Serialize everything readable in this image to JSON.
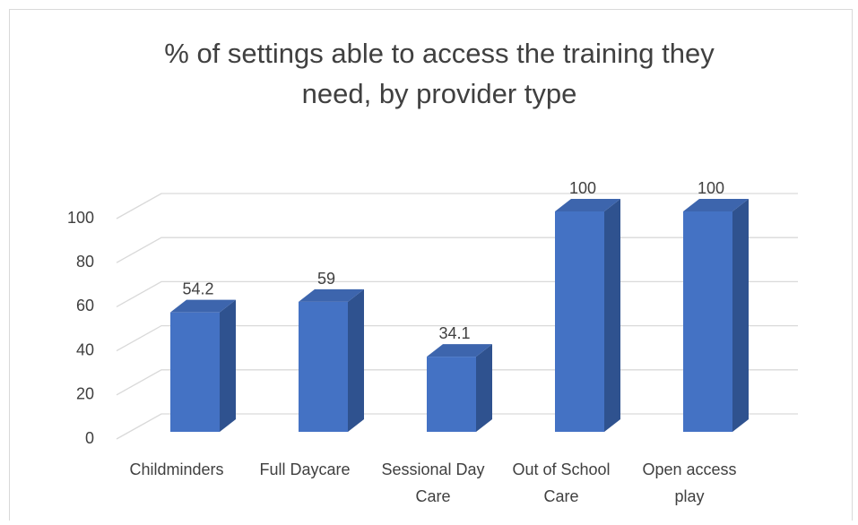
{
  "chart_data": {
    "type": "bar3d",
    "title": "% of settings able to access the training they need, by provider type",
    "categories": [
      "Childminders",
      "Full Daycare",
      "Sessional Day Care",
      "Out of School Care",
      "Open access play"
    ],
    "values": [
      54.2,
      59,
      34.1,
      100,
      100
    ],
    "color": "#4472c4",
    "ylim": [
      0,
      100
    ],
    "yticks": [
      0,
      20,
      40,
      60,
      80,
      100
    ],
    "grid": true,
    "data_labels": true
  }
}
